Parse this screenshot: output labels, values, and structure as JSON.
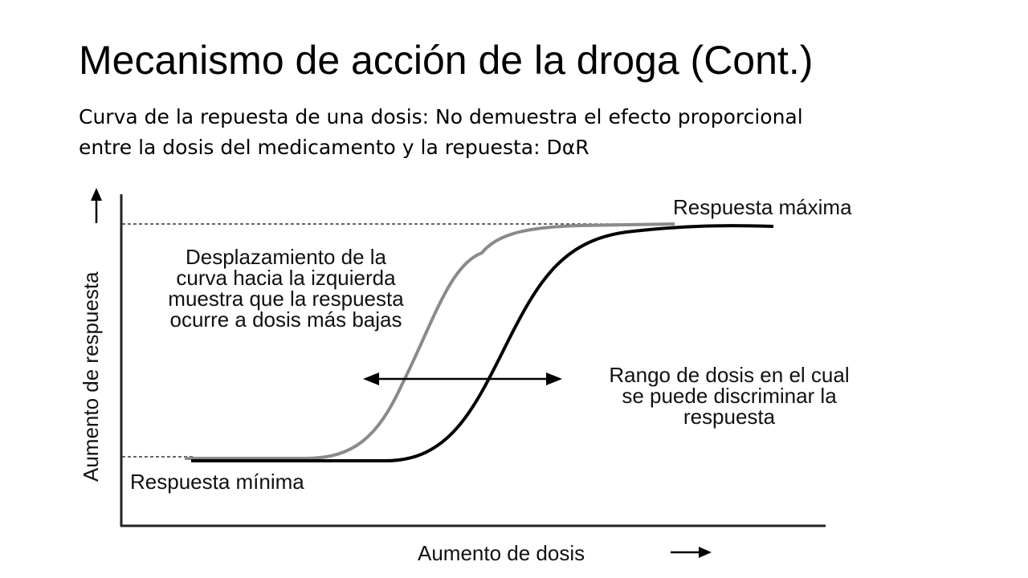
{
  "slide": {
    "title": "Mecanismo de acción de la droga (Cont.)",
    "subtitle_line1": "Curva de la repuesta de una dosis: No demuestra el efecto proporcional",
    "subtitle_line2": "entre la dosis del medicamento y la repuesta: DαR"
  },
  "diagram": {
    "y_axis_label": "Aumento de respuesta",
    "x_axis_label": "Aumento de dosis",
    "max_label": "Respuesta máxima",
    "min_label": "Respuesta mínima",
    "shift_note": [
      "Desplazamiento de la",
      "curva hacia la izquierda",
      "muestra que la respuesta",
      "ocurre a dosis más bajas"
    ],
    "range_note": [
      "Rango de dosis en el cual",
      "se puede discriminar la",
      "respuesta"
    ],
    "curve_colors": {
      "shifted": "#8a8a8a",
      "reference": "#000000"
    }
  }
}
